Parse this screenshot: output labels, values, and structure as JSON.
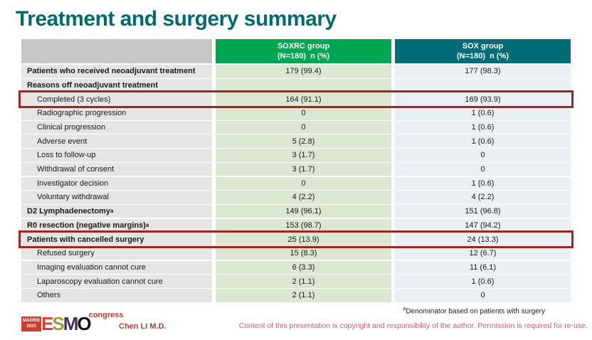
{
  "slide": {
    "title": "Treatment and surgery summary",
    "colors": {
      "title_teal": "#006a6c",
      "header_green": "#00a651",
      "header_teal": "#016b77",
      "value_col_green": "#dbe7d1",
      "value_col_blue": "#e9eff2",
      "label_col_gray": "#e5e5e5",
      "highlight_red": "#9c2722",
      "copyright_rose": "#bb646c"
    },
    "table": {
      "columns": [
        {
          "line1": "SOXRC group",
          "line2": "(N=180)  n (%)"
        },
        {
          "line1": "SOX group",
          "line2": "(N=180)  n (%)"
        }
      ],
      "rows": [
        {
          "label": "Patients who received neoadjuvant treatment",
          "v1": "179 (99.4)",
          "v2": "177 (98.3)",
          "style": "section",
          "highlight": false
        },
        {
          "label": "Reasons off neoadjuvant treatment",
          "v1": "",
          "v2": "",
          "style": "section",
          "highlight": false
        },
        {
          "label": "Completed (3 cycles)",
          "v1": "164 (91.1)",
          "v2": "169 (93.9)",
          "style": "sub",
          "highlight": true
        },
        {
          "label": "Radiographic progression",
          "v1": "0",
          "v2": "1 (0.6)",
          "style": "sub",
          "highlight": false
        },
        {
          "label": "Clinical progression",
          "v1": "0",
          "v2": "1 (0.6)",
          "style": "sub",
          "highlight": false
        },
        {
          "label": "Adverse event",
          "v1": "5 (2.8)",
          "v2": "1 (0.6)",
          "style": "sub",
          "highlight": false
        },
        {
          "label": "Loss to follow-up",
          "v1": "3 (1.7)",
          "v2": "0",
          "style": "sub",
          "highlight": false
        },
        {
          "label": "Withdrawal of consent",
          "v1": "3 (1.7)",
          "v2": "0",
          "style": "sub",
          "highlight": false
        },
        {
          "label": "Investigator decision",
          "v1": "0",
          "v2": "1 (0.6)",
          "style": "sub",
          "highlight": false
        },
        {
          "label": "Voluntary withdrawal",
          "v1": "4 (2.2)",
          "v2": "4 (2.2)",
          "style": "sub",
          "highlight": false
        },
        {
          "label": "D2 Lymphadenectomy",
          "sup": "a",
          "v1": "149 (96.1)",
          "v2": "151 (96.8)",
          "style": "section",
          "highlight": false
        },
        {
          "label": "R0 resection (negative margins)",
          "sup": "a",
          "v1": "153 (98.7)",
          "v2": "147 (94.2)",
          "style": "section",
          "highlight": false
        },
        {
          "label": "Patients with cancelled surgery",
          "v1": "25 (13.9)",
          "v2": "24 (13.3)",
          "style": "section",
          "highlight": true
        },
        {
          "label": "Refused surgery",
          "v1": "15 (8.3)",
          "v2": "12 (6.7)",
          "style": "sub",
          "highlight": false
        },
        {
          "label": "Imaging evaluation cannot cure",
          "v1": "6 (3.3)",
          "v2": "11 (6.1)",
          "style": "sub",
          "highlight": false
        },
        {
          "label": "Laparoscopy evaluation cannot cure",
          "v1": "2 (1.1)",
          "v2": "1 (0.6)",
          "style": "sub",
          "highlight": false
        },
        {
          "label": "Others",
          "v1": "2 (1.1)",
          "v2": "0",
          "style": "sub",
          "highlight": false
        }
      ]
    },
    "footer": {
      "logo": {
        "badge_line1": "MADRID",
        "badge_line2": "2023",
        "letters": [
          "E",
          "S",
          "M",
          "O"
        ],
        "congress": "congress"
      },
      "presenter": "Chen LI M.D.",
      "footnote_sup": "a",
      "footnote": "Denominator based on patients with surgery",
      "copyright": "Content of this presentation is copyright and responsibility of the author. Permission is required for re-use."
    }
  }
}
